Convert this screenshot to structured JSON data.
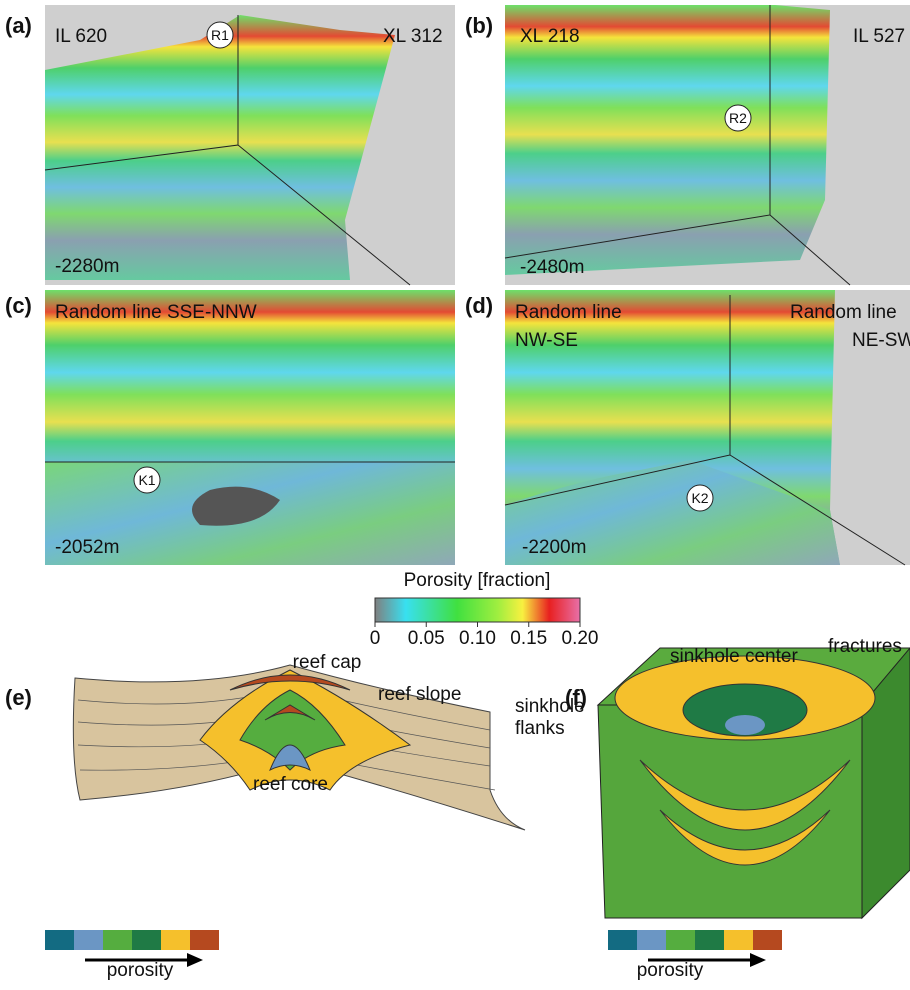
{
  "panels": [
    {
      "label": "(a)",
      "texts": [
        "IL 620",
        "XL 312",
        "-2280m"
      ],
      "marker": "R1"
    },
    {
      "label": "(b)",
      "texts": [
        "XL 218",
        "IL 527",
        "-2480m"
      ],
      "marker": "R2"
    },
    {
      "label": "(c)",
      "texts": [
        "Random line SSE-NNW",
        "-2052m"
      ],
      "marker": "K1"
    },
    {
      "label": "(d)",
      "texts": [
        "Random line",
        "NW-SE",
        "Random line",
        "NE-SW",
        "-2200m"
      ],
      "marker": "K2"
    }
  ],
  "colorbar": {
    "title": "Porosity [fraction]",
    "ticks": [
      "0",
      "0.05",
      "0.10",
      "0.15",
      "0.20"
    ]
  },
  "diagrams": [
    {
      "label": "(e)",
      "annotations": [
        "reef cap",
        "reef slope",
        "reef core"
      ],
      "legend": "porosity"
    },
    {
      "label": "(f)",
      "annotations": [
        "sinkhole center",
        "fractures",
        "sinkhole",
        "flanks"
      ],
      "legend": "porosity"
    }
  ]
}
